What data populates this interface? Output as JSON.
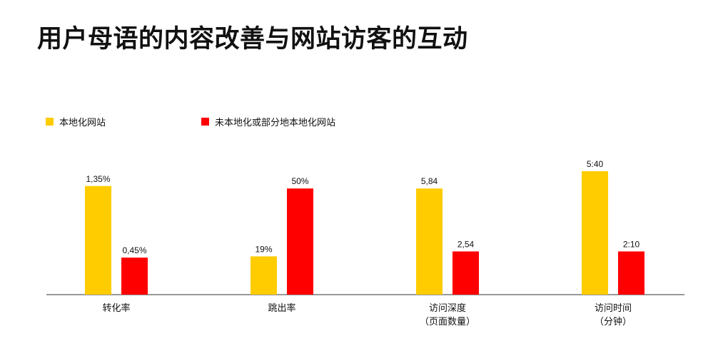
{
  "title": "用户母语的内容改善与网站访客的互动",
  "chart_data": {
    "type": "bar",
    "categories": [
      [
        "转化率"
      ],
      [
        "跳出率"
      ],
      [
        "访问深度",
        "（页面数量）"
      ],
      [
        "访问时间",
        "（分钟）"
      ]
    ],
    "series": [
      {
        "name": "本地化网站",
        "color": "#FFCC00",
        "labels": [
          "1,35%",
          "19%",
          "5,84",
          "5:40"
        ]
      },
      {
        "name": "未本地化或部分地本地化网站",
        "color": "#FF0000",
        "labels": [
          "0,45%",
          "50%",
          "2,54",
          "2:10"
        ]
      }
    ],
    "bar_heights_relative": [
      [
        0.88,
        0.3
      ],
      [
        0.31,
        0.86
      ],
      [
        0.86,
        0.35
      ],
      [
        1.0,
        0.35
      ]
    ],
    "axis_line": true,
    "grid": false,
    "legend_position": "top-left"
  }
}
